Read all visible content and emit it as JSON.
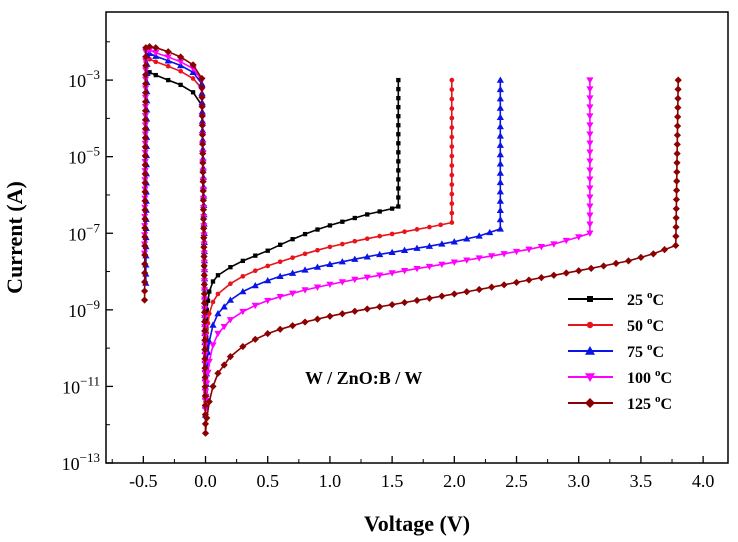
{
  "chart_data": {
    "type": "line",
    "title": "",
    "xlabel": "Voltage (V)",
    "ylabel": "Current (A)",
    "xlim": [
      -0.8,
      4.2
    ],
    "ylim": [
      1e-13,
      0.06
    ],
    "yscale": "log",
    "grid": false,
    "legend_position": "bottom-right",
    "annotation": "W / ZnO:B / W",
    "x_ticks": [
      {
        "value": -0.5,
        "label": "-0.5"
      },
      {
        "value": 0.0,
        "label": "0.0"
      },
      {
        "value": 0.5,
        "label": "0.5"
      },
      {
        "value": 1.0,
        "label": "1.0"
      },
      {
        "value": 1.5,
        "label": "1.5"
      },
      {
        "value": 2.0,
        "label": "2.0"
      },
      {
        "value": 2.5,
        "label": "2.5"
      },
      {
        "value": 3.0,
        "label": "3.0"
      },
      {
        "value": 3.5,
        "label": "3.5"
      },
      {
        "value": 4.0,
        "label": "4.0"
      }
    ],
    "y_ticks": [
      {
        "value": 0.001,
        "base": "10",
        "exp": "−3"
      },
      {
        "value": 1e-05,
        "base": "10",
        "exp": "−5"
      },
      {
        "value": 1e-07,
        "base": "10",
        "exp": "−7"
      },
      {
        "value": 1e-09,
        "base": "10",
        "exp": "−9"
      },
      {
        "value": 1e-11,
        "base": "10",
        "exp": "−11"
      },
      {
        "value": 1e-13,
        "base": "10",
        "exp": "−13"
      }
    ],
    "series": [
      {
        "name": "25 °C",
        "legend_text": "25 ",
        "legend_sup": "o",
        "legend_unit": "C",
        "color": "#000000",
        "marker": "square",
        "points": [
          [
            -0.48,
            0.0012
          ],
          [
            -0.45,
            0.0016
          ],
          [
            -0.4,
            0.00135
          ],
          [
            -0.3,
            0.001
          ],
          [
            -0.2,
            0.00075
          ],
          [
            -0.1,
            0.00048
          ],
          [
            -0.03,
            0.00022
          ],
          [
            -0.01,
            8e-09
          ],
          [
            0.0,
            2e-11
          ],
          [
            0.01,
            1e-09
          ],
          [
            0.03,
            3e-09
          ],
          [
            0.06,
            5.5e-09
          ],
          [
            0.1,
            8e-09
          ],
          [
            0.2,
            1.3e-08
          ],
          [
            0.3,
            1.9e-08
          ],
          [
            0.4,
            2.6e-08
          ],
          [
            0.5,
            3.5e-08
          ],
          [
            0.6,
            5e-08
          ],
          [
            0.7,
            7e-08
          ],
          [
            0.8,
            9.5e-08
          ],
          [
            0.9,
            1.25e-07
          ],
          [
            1.0,
            1.6e-07
          ],
          [
            1.1,
            2e-07
          ],
          [
            1.2,
            2.5e-07
          ],
          [
            1.3,
            3.1e-07
          ],
          [
            1.4,
            3.7e-07
          ],
          [
            1.5,
            4.4e-07
          ],
          [
            1.55,
            5e-07
          ],
          [
            1.55,
            0.001
          ]
        ]
      },
      {
        "name": "50 °C",
        "legend_text": "50 ",
        "legend_sup": "o",
        "legend_unit": "C",
        "color": "#e8141c",
        "marker": "circle",
        "points": [
          [
            -0.48,
            0.003
          ],
          [
            -0.45,
            0.0035
          ],
          [
            -0.4,
            0.003
          ],
          [
            -0.3,
            0.0023
          ],
          [
            -0.2,
            0.0017
          ],
          [
            -0.1,
            0.0011
          ],
          [
            -0.03,
            0.0006
          ],
          [
            -0.01,
            6e-08
          ],
          [
            0.0,
            4e-12
          ],
          [
            0.01,
            2.5e-10
          ],
          [
            0.03,
            8e-10
          ],
          [
            0.06,
            1.6e-09
          ],
          [
            0.1,
            2.6e-09
          ],
          [
            0.2,
            4.8e-09
          ],
          [
            0.3,
            7.5e-09
          ],
          [
            0.4,
            1.05e-08
          ],
          [
            0.5,
            1.4e-08
          ],
          [
            0.6,
            1.8e-08
          ],
          [
            0.7,
            2.3e-08
          ],
          [
            0.8,
            2.9e-08
          ],
          [
            0.9,
            3.6e-08
          ],
          [
            1.0,
            4.4e-08
          ],
          [
            1.2,
            6.2e-08
          ],
          [
            1.4,
            8.4e-08
          ],
          [
            1.6,
            1.1e-07
          ],
          [
            1.8,
            1.45e-07
          ],
          [
            1.98,
            1.9e-07
          ],
          [
            1.98,
            0.001
          ]
        ]
      },
      {
        "name": "75 °C",
        "legend_text": "75 ",
        "legend_sup": "o",
        "legend_unit": "C",
        "color": "#0a14e6",
        "marker": "triangle-up",
        "points": [
          [
            -0.48,
            5e-09
          ],
          [
            -0.47,
            0.0045
          ],
          [
            -0.45,
            0.005
          ],
          [
            -0.4,
            0.0042
          ],
          [
            -0.3,
            0.0032
          ],
          [
            -0.2,
            0.0024
          ],
          [
            -0.1,
            0.0016
          ],
          [
            -0.03,
            0.0008
          ],
          [
            -0.01,
            1e-07
          ],
          [
            0.0,
            1.8e-12
          ],
          [
            0.01,
            4e-11
          ],
          [
            0.03,
            1.5e-10
          ],
          [
            0.06,
            4e-10
          ],
          [
            0.1,
            8e-10
          ],
          [
            0.2,
            1.8e-09
          ],
          [
            0.3,
            3e-09
          ],
          [
            0.4,
            4.3e-09
          ],
          [
            0.5,
            5.8e-09
          ],
          [
            0.6,
            7.5e-09
          ],
          [
            0.8,
            1.1e-08
          ],
          [
            1.0,
            1.55e-08
          ],
          [
            1.2,
            2.1e-08
          ],
          [
            1.4,
            2.8e-08
          ],
          [
            1.6,
            3.6e-08
          ],
          [
            1.8,
            4.6e-08
          ],
          [
            2.0,
            6e-08
          ],
          [
            2.2,
            8.5e-08
          ],
          [
            2.37,
            1.3e-07
          ],
          [
            2.37,
            0.001
          ]
        ]
      },
      {
        "name": "100 °C",
        "legend_text": "100 ",
        "legend_sup": "o",
        "legend_unit": "C",
        "color": "#ff00ff",
        "marker": "triangle-down",
        "points": [
          [
            -0.49,
            3e-08
          ],
          [
            -0.48,
            0.0055
          ],
          [
            -0.45,
            0.006
          ],
          [
            -0.4,
            0.0052
          ],
          [
            -0.3,
            0.004
          ],
          [
            -0.2,
            0.003
          ],
          [
            -0.1,
            0.002
          ],
          [
            -0.03,
            0.001
          ],
          [
            -0.01,
            3e-08
          ],
          [
            0.0,
            2.5e-12
          ],
          [
            0.01,
            1.2e-11
          ],
          [
            0.03,
            4.5e-11
          ],
          [
            0.06,
            1.2e-10
          ],
          [
            0.1,
            2.4e-10
          ],
          [
            0.2,
            5.5e-10
          ],
          [
            0.3,
            9e-10
          ],
          [
            0.4,
            1.3e-09
          ],
          [
            0.5,
            1.75e-09
          ],
          [
            0.6,
            2.2e-09
          ],
          [
            0.8,
            3.3e-09
          ],
          [
            1.0,
            4.6e-09
          ],
          [
            1.2,
            6.2e-09
          ],
          [
            1.4,
            8e-09
          ],
          [
            1.6,
            1.05e-08
          ],
          [
            1.8,
            1.35e-08
          ],
          [
            2.0,
            1.75e-08
          ],
          [
            2.2,
            2.25e-08
          ],
          [
            2.4,
            2.9e-08
          ],
          [
            2.6,
            3.8e-08
          ],
          [
            2.8,
            5.2e-08
          ],
          [
            3.0,
            8e-08
          ],
          [
            3.09,
            1e-07
          ],
          [
            3.09,
            0.001
          ]
        ]
      },
      {
        "name": "125 °C",
        "legend_text": "125 ",
        "legend_sup": "o",
        "legend_unit": "C",
        "color": "#8b0000",
        "marker": "diamond",
        "points": [
          [
            -0.49,
            1.8e-09
          ],
          [
            -0.48,
            0.007
          ],
          [
            -0.45,
            0.0075
          ],
          [
            -0.4,
            0.007
          ],
          [
            -0.3,
            0.0055
          ],
          [
            -0.2,
            0.004
          ],
          [
            -0.1,
            0.0025
          ],
          [
            -0.03,
            0.0011
          ],
          [
            -0.01,
            8e-09
          ],
          [
            0.0,
            6e-13
          ],
          [
            0.01,
            1.5e-12
          ],
          [
            0.03,
            4e-12
          ],
          [
            0.06,
            1e-11
          ],
          [
            0.1,
            2.2e-11
          ],
          [
            0.2,
            6e-11
          ],
          [
            0.3,
            1.1e-10
          ],
          [
            0.4,
            1.7e-10
          ],
          [
            0.5,
            2.4e-10
          ],
          [
            0.6,
            3.1e-10
          ],
          [
            0.8,
            4.8e-10
          ],
          [
            1.0,
            6.8e-10
          ],
          [
            1.2,
            9.2e-10
          ],
          [
            1.4,
            1.2e-09
          ],
          [
            1.6,
            1.55e-09
          ],
          [
            1.8,
            2e-09
          ],
          [
            2.0,
            2.6e-09
          ],
          [
            2.2,
            3.4e-09
          ],
          [
            2.4,
            4.5e-09
          ],
          [
            2.6,
            6e-09
          ],
          [
            2.8,
            8e-09
          ],
          [
            3.0,
            1.05e-08
          ],
          [
            3.2,
            1.4e-08
          ],
          [
            3.4,
            1.9e-08
          ],
          [
            3.6,
            2.9e-08
          ],
          [
            3.78,
            4.8e-08
          ],
          [
            3.8,
            0.001
          ]
        ]
      }
    ]
  }
}
